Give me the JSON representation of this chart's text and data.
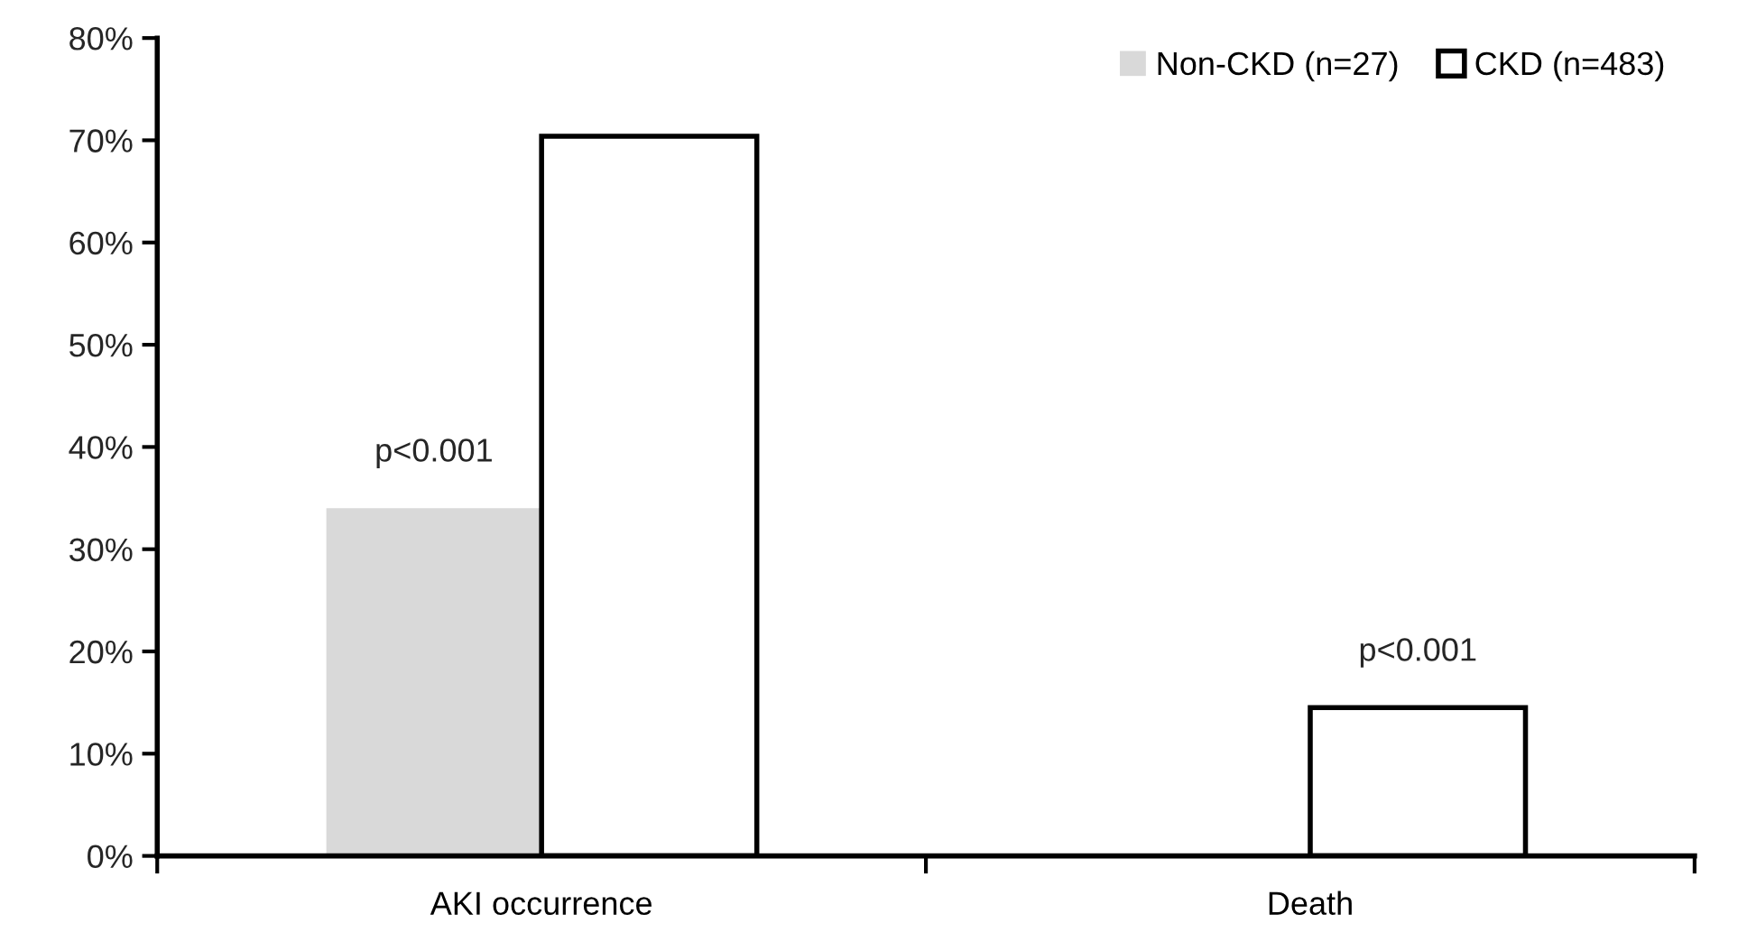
{
  "chart_data": {
    "type": "bar",
    "categories": [
      "AKI occurrence",
      "Death"
    ],
    "series": [
      {
        "name": "Non-CKD (n=27)",
        "color": "#d9d9d9",
        "values": [
          34,
          0
        ]
      },
      {
        "name": "CKD (n=483)",
        "color": "#ffffff",
        "values": [
          70.4,
          14.5
        ]
      }
    ],
    "ylim": [
      0,
      80
    ],
    "yticks": [
      {
        "value": 0,
        "label": "0%"
      },
      {
        "value": 10,
        "label": "10%"
      },
      {
        "value": 20,
        "label": "20%"
      },
      {
        "value": 30,
        "label": "30%"
      },
      {
        "value": 40,
        "label": "40%"
      },
      {
        "value": 50,
        "label": "50%"
      },
      {
        "value": 60,
        "label": "60%"
      },
      {
        "value": 70,
        "label": "70%"
      },
      {
        "value": 80,
        "label": "80%"
      }
    ],
    "annotations": [
      {
        "text": "p<0.001",
        "x": "AKI occurrence",
        "y": 34
      },
      {
        "text": "p<0.001",
        "x": "Death",
        "y": 14.5
      }
    ],
    "grid": false,
    "legend": "top right"
  }
}
